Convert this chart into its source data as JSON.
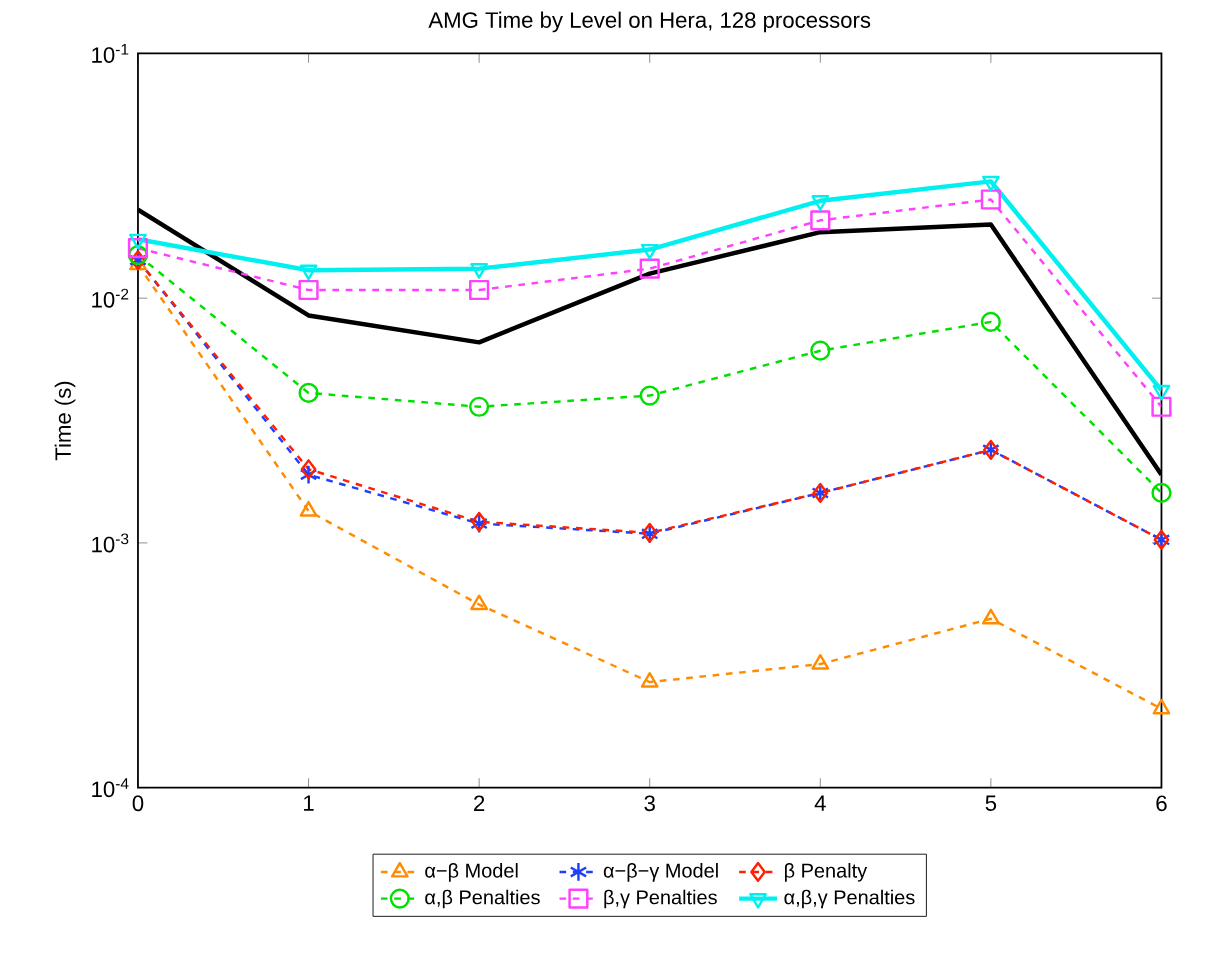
{
  "chart_data": {
    "type": "line",
    "title": "AMG Time by Level on Hera, 128 processors",
    "ylabel": "Time (s)",
    "x": [
      0,
      1,
      2,
      3,
      4,
      5,
      6
    ],
    "xlim": [
      0,
      6
    ],
    "xticks": [
      0,
      1,
      2,
      3,
      4,
      5,
      6
    ],
    "ylim": [
      0.0001,
      0.1
    ],
    "yticks": [
      {
        "value": 0.0001,
        "label": "10$^{-4}$"
      },
      {
        "value": 0.001,
        "label": "10$^{-3}$"
      },
      {
        "value": 0.01,
        "label": "10$^{-2}$"
      },
      {
        "value": 0.1,
        "label": "10$^{-1}$"
      }
    ],
    "log": "y",
    "grid": false,
    "legend": "bottom",
    "series": [
      {
        "color": "#000000",
        "marker": "none",
        "line_style": "solid",
        "values": [
          0.023,
          0.0085,
          0.0066,
          0.0126,
          0.0186,
          0.02,
          0.0019
        ]
      },
      {
        "name": "α−β Model",
        "color": "#ff8c00",
        "marker": "triangle",
        "line_style": "dashed",
        "values": [
          0.0137,
          0.00135,
          0.00056,
          0.00027,
          0.00032,
          0.00049,
          0.00021
        ]
      },
      {
        "name": "α−β−γ Model",
        "color": "#1f3fff",
        "marker": "cross",
        "line_style": "dashed",
        "values": [
          0.0143,
          0.0019,
          0.0012,
          0.00109,
          0.0016,
          0.0024,
          0.00103
        ]
      },
      {
        "name": "β Penalty",
        "color": "#ff2000",
        "marker": "diamond",
        "line_style": "dashed",
        "values": [
          0.0143,
          0.002,
          0.00122,
          0.0011,
          0.0016,
          0.0024,
          0.00103
        ]
      },
      {
        "name": "α,β Penalties",
        "color": "#00e000",
        "marker": "circle",
        "line_style": "dashed",
        "values": [
          0.015,
          0.0041,
          0.0036,
          0.004,
          0.0061,
          0.008,
          0.0016
        ]
      },
      {
        "name": "β,γ Penalties",
        "color": "#ff40ff",
        "marker": "square",
        "line_style": "dashed",
        "values": [
          0.016,
          0.0108,
          0.0108,
          0.0132,
          0.0208,
          0.0253,
          0.0036
        ]
      },
      {
        "name": "α,β,γ Penalties",
        "color": "#00f0f0",
        "marker": "triangle-down",
        "line_style": "solid",
        "values": [
          0.0174,
          0.013,
          0.0132,
          0.0158,
          0.025,
          0.03,
          0.0042
        ]
      }
    ]
  }
}
